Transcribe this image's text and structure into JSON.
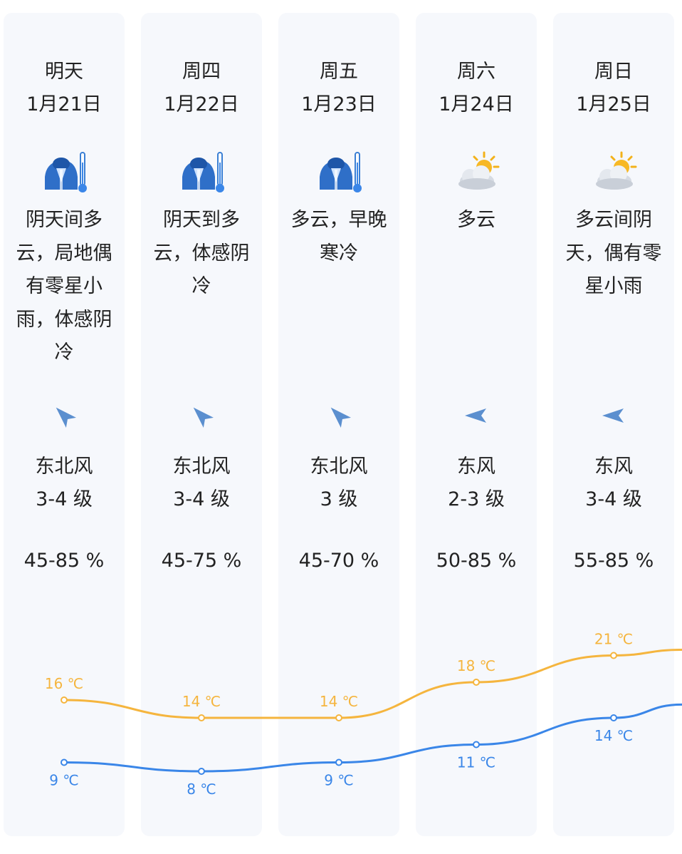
{
  "days": [
    {
      "weekday": "明天",
      "date": "1月21日",
      "weather_icon": "cold-icon",
      "description": "阴天间多云，局地偶有零星小雨，体感阴冷",
      "wind_icon": "wind-direction-northeast-icon",
      "wind_direction": "东北风",
      "wind_level": "3-4 级",
      "humidity": "45-85 %"
    },
    {
      "weekday": "周四",
      "date": "1月22日",
      "weather_icon": "cold-icon",
      "description": "阴天到多云，体感阴冷",
      "wind_icon": "wind-direction-northeast-icon",
      "wind_direction": "东北风",
      "wind_level": "3-4 级",
      "humidity": "45-75 %"
    },
    {
      "weekday": "周五",
      "date": "1月23日",
      "weather_icon": "cold-icon",
      "description": "多云，早晚寒冷",
      "wind_icon": "wind-direction-northeast-icon",
      "wind_direction": "东北风",
      "wind_level": "3 级",
      "humidity": "45-70 %"
    },
    {
      "weekday": "周六",
      "date": "1月24日",
      "weather_icon": "partly-cloudy-icon",
      "description": "多云",
      "wind_icon": "wind-direction-east-icon",
      "wind_direction": "东风",
      "wind_level": "2-3 级",
      "humidity": "50-85 %"
    },
    {
      "weekday": "周日",
      "date": "1月25日",
      "weather_icon": "partly-cloudy-icon",
      "description": "多云间阴天，偶有零星小雨",
      "wind_icon": "wind-direction-east-icon",
      "wind_direction": "东风",
      "wind_level": "3-4 级",
      "humidity": "55-85 %"
    }
  ],
  "colors": {
    "high_temp_line": "#f5b53e",
    "low_temp_line": "#3a86e8",
    "column_background": "#f6f8fc",
    "text": "#222222",
    "wind_icon": "#5b8fcf"
  },
  "chart_data": {
    "type": "line",
    "categories": [
      "1月21日",
      "1月22日",
      "1月23日",
      "1月24日",
      "1月25日"
    ],
    "series": [
      {
        "values": [
          16,
          14,
          14,
          18,
          21
        ],
        "labels": [
          "16 ℃",
          "14 ℃",
          "14 ℃",
          "18 ℃",
          "21 ℃"
        ]
      },
      {
        "values": [
          9,
          8,
          9,
          11,
          14
        ],
        "labels": [
          "9 ℃",
          "8 ℃",
          "9 ℃",
          "11 ℃",
          "14 ℃"
        ]
      }
    ],
    "ylim": [
      5,
      24
    ]
  }
}
